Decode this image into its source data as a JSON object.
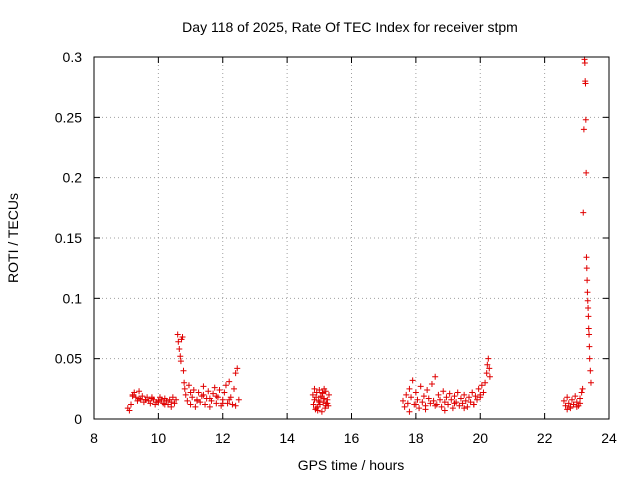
{
  "chart_data": {
    "type": "scatter",
    "title": "Day 118 of 2025, Rate Of TEC Index for receiver stpm",
    "xlabel": "GPS time / hours",
    "ylabel": "ROTI / TECUs",
    "xlim": [
      8,
      24
    ],
    "ylim": [
      0,
      0.3
    ],
    "xticks": [
      8,
      10,
      12,
      14,
      16,
      18,
      20,
      22,
      24
    ],
    "yticks": [
      0,
      0.05,
      0.1,
      0.15,
      0.2,
      0.25,
      0.3
    ],
    "xtick_labels": [
      "8",
      "10",
      "12",
      "14",
      "16",
      "18",
      "20",
      "22",
      "24"
    ],
    "ytick_labels": [
      "0",
      "0.05",
      "0.1",
      "0.15",
      "0.2",
      "0.25",
      "0.3"
    ],
    "grid": true,
    "legend": "none",
    "marker": "plus",
    "color": "#e00000",
    "series": [
      {
        "x": [
          9.05,
          9.1,
          9.15,
          9.2,
          9.25,
          9.3,
          9.35,
          9.4,
          9.45,
          9.5,
          9.55,
          9.6,
          9.65,
          9.7,
          9.75,
          9.8,
          9.85,
          9.9,
          9.95,
          10.0,
          10.05,
          10.1,
          10.15,
          10.2,
          10.25,
          10.3,
          10.35,
          10.4,
          10.45,
          10.5,
          10.55,
          10.6,
          10.62,
          10.65,
          10.68,
          10.7,
          10.72,
          10.75,
          10.78,
          10.8,
          10.82,
          10.85,
          10.9,
          10.95,
          11.0,
          11.05,
          11.1,
          11.15,
          11.2,
          11.25,
          11.3,
          11.35,
          11.4,
          11.45,
          11.5,
          11.55,
          11.6,
          11.65,
          11.7,
          11.75,
          11.8,
          11.85,
          11.9,
          11.95,
          12.0,
          12.05,
          12.1,
          12.15,
          12.2,
          12.25,
          12.3,
          12.35,
          12.4,
          12.45,
          12.5,
          9.2,
          9.4,
          9.6,
          9.8,
          10.0,
          10.2,
          10.4,
          11.0,
          11.2,
          11.4,
          11.6,
          11.8,
          12.0,
          12.2,
          12.4
        ],
        "y": [
          0.009,
          0.007,
          0.012,
          0.019,
          0.022,
          0.018,
          0.015,
          0.017,
          0.016,
          0.019,
          0.014,
          0.016,
          0.018,
          0.015,
          0.013,
          0.017,
          0.016,
          0.012,
          0.014,
          0.015,
          0.018,
          0.016,
          0.013,
          0.017,
          0.015,
          0.012,
          0.016,
          0.014,
          0.018,
          0.013,
          0.016,
          0.07,
          0.064,
          0.058,
          0.052,
          0.048,
          0.066,
          0.068,
          0.04,
          0.03,
          0.025,
          0.02,
          0.015,
          0.028,
          0.012,
          0.018,
          0.024,
          0.01,
          0.016,
          0.022,
          0.014,
          0.019,
          0.027,
          0.012,
          0.017,
          0.023,
          0.01,
          0.015,
          0.021,
          0.026,
          0.013,
          0.018,
          0.024,
          0.011,
          0.016,
          0.022,
          0.028,
          0.013,
          0.031,
          0.018,
          0.012,
          0.025,
          0.038,
          0.042,
          0.016,
          0.02,
          0.023,
          0.016,
          0.018,
          0.014,
          0.012,
          0.01,
          0.022,
          0.015,
          0.02,
          0.017,
          0.019,
          0.013,
          0.016,
          0.011
        ]
      },
      {
        "x": [
          14.8,
          14.82,
          14.85,
          14.88,
          14.9,
          14.92,
          14.95,
          14.98,
          15.0,
          15.02,
          15.05,
          15.08,
          15.1,
          15.12,
          15.15,
          15.18,
          15.2,
          15.22,
          15.25,
          15.28,
          15.3,
          14.85,
          14.95,
          15.05,
          15.15,
          15.25,
          14.9,
          15.0,
          15.1,
          15.2
        ],
        "y": [
          0.02,
          0.012,
          0.025,
          0.008,
          0.018,
          0.022,
          0.01,
          0.015,
          0.024,
          0.012,
          0.019,
          0.006,
          0.021,
          0.014,
          0.017,
          0.009,
          0.023,
          0.013,
          0.016,
          0.011,
          0.02,
          0.016,
          0.007,
          0.018,
          0.025,
          0.013,
          0.009,
          0.014,
          0.022,
          0.011
        ]
      },
      {
        "x": [
          17.6,
          17.65,
          17.7,
          17.75,
          17.8,
          17.85,
          17.9,
          17.95,
          18.0,
          18.05,
          18.1,
          18.15,
          18.2,
          18.25,
          18.3,
          18.35,
          18.4,
          18.45,
          18.5,
          18.55,
          18.6,
          18.65,
          18.7,
          18.75,
          18.8,
          18.85,
          18.9,
          18.95,
          19.0,
          19.05,
          19.1,
          19.15,
          19.2,
          19.25,
          19.3,
          19.35,
          19.4,
          19.45,
          19.5,
          19.55,
          19.6,
          19.65,
          19.7,
          19.75,
          19.8,
          19.85,
          19.9,
          19.95,
          20.0,
          20.05,
          20.1,
          20.15,
          20.2,
          20.22,
          20.25,
          20.28,
          20.3,
          17.8,
          18.0,
          18.3,
          18.6,
          18.9,
          19.2,
          19.5,
          19.8,
          20.0
        ],
        "y": [
          0.015,
          0.01,
          0.02,
          0.013,
          0.025,
          0.018,
          0.032,
          0.012,
          0.022,
          0.016,
          0.009,
          0.027,
          0.014,
          0.019,
          0.011,
          0.024,
          0.017,
          0.013,
          0.029,
          0.015,
          0.035,
          0.012,
          0.02,
          0.016,
          0.01,
          0.023,
          0.014,
          0.018,
          0.012,
          0.021,
          0.016,
          0.009,
          0.019,
          0.014,
          0.022,
          0.011,
          0.017,
          0.013,
          0.02,
          0.015,
          0.01,
          0.018,
          0.014,
          0.022,
          0.012,
          0.019,
          0.016,
          0.025,
          0.018,
          0.028,
          0.022,
          0.03,
          0.038,
          0.045,
          0.05,
          0.042,
          0.035,
          0.006,
          0.012,
          0.008,
          0.011,
          0.007,
          0.013,
          0.009,
          0.012,
          0.02
        ]
      },
      {
        "x": [
          22.6,
          22.65,
          22.7,
          22.75,
          22.8,
          22.85,
          22.9,
          22.95,
          23.0,
          23.05,
          23.1,
          23.15,
          23.18,
          23.2,
          23.22,
          23.24,
          23.25,
          23.26,
          23.27,
          23.28,
          23.29,
          23.3,
          23.31,
          23.32,
          23.33,
          23.34,
          23.35,
          23.36,
          23.37,
          23.38,
          23.39,
          23.4,
          23.42,
          23.44,
          22.7,
          22.8,
          22.9,
          23.0,
          23.1
        ],
        "y": [
          0.015,
          0.011,
          0.018,
          0.013,
          0.01,
          0.016,
          0.012,
          0.019,
          0.014,
          0.011,
          0.017,
          0.022,
          0.025,
          0.171,
          0.24,
          0.298,
          0.295,
          0.28,
          0.278,
          0.248,
          0.204,
          0.134,
          0.125,
          0.115,
          0.105,
          0.098,
          0.092,
          0.085,
          0.075,
          0.07,
          0.06,
          0.05,
          0.04,
          0.03,
          0.008,
          0.009,
          0.012,
          0.01,
          0.013
        ]
      }
    ]
  }
}
